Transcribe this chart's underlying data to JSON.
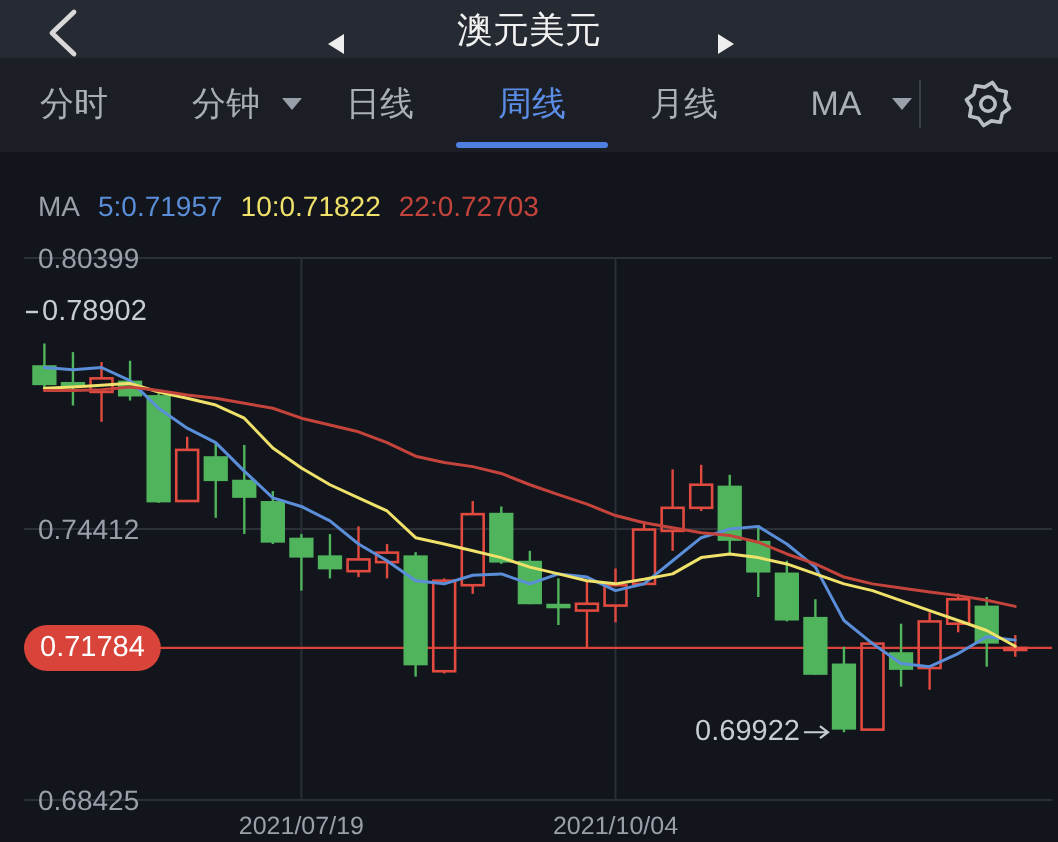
{
  "chart_data": {
    "type": "candlestick",
    "title": "澳元美元",
    "x": [
      "2021-05-17",
      "2021-05-24",
      "2021-05-31",
      "2021-06-07",
      "2021-06-14",
      "2021-06-21",
      "2021-06-28",
      "2021-07-05",
      "2021-07-12",
      "2021-07-19",
      "2021-07-26",
      "2021-08-02",
      "2021-08-09",
      "2021-08-16",
      "2021-08-23",
      "2021-08-30",
      "2021-09-06",
      "2021-09-13",
      "2021-09-20",
      "2021-09-27",
      "2021-10-04",
      "2021-10-11",
      "2021-10-18",
      "2021-10-25",
      "2021-11-01",
      "2021-11-08",
      "2021-11-15",
      "2021-11-22",
      "2021-11-29",
      "2021-12-06",
      "2021-12-13",
      "2021-12-20",
      "2021-12-27",
      "2022-01-03",
      "2022-01-10"
    ],
    "ohlc": [
      [
        0.7803,
        0.7851,
        0.7752,
        0.7759
      ],
      [
        0.7766,
        0.7832,
        0.7714,
        0.7755
      ],
      [
        0.7744,
        0.781,
        0.7678,
        0.7774
      ],
      [
        0.7769,
        0.7813,
        0.7725,
        0.7734
      ],
      [
        0.7737,
        0.774,
        0.7499,
        0.75
      ],
      [
        0.7503,
        0.7645,
        0.7502,
        0.7616
      ],
      [
        0.7602,
        0.7632,
        0.7466,
        0.7547
      ],
      [
        0.755,
        0.7627,
        0.743,
        0.751
      ],
      [
        0.7503,
        0.7525,
        0.7408,
        0.7411
      ],
      [
        0.7422,
        0.743,
        0.7305,
        0.7378
      ],
      [
        0.7383,
        0.743,
        0.7332,
        0.7352
      ],
      [
        0.7348,
        0.7447,
        0.7335,
        0.7374
      ],
      [
        0.7368,
        0.7408,
        0.7332,
        0.7389
      ],
      [
        0.7383,
        0.739,
        0.7115,
        0.714
      ],
      [
        0.7127,
        0.7332,
        0.7122,
        0.7327
      ],
      [
        0.7317,
        0.7503,
        0.7298,
        0.7474
      ],
      [
        0.7477,
        0.7491,
        0.7364,
        0.7367
      ],
      [
        0.7371,
        0.7393,
        0.7275,
        0.7275
      ],
      [
        0.7276,
        0.7332,
        0.7229,
        0.7266
      ],
      [
        0.7261,
        0.7327,
        0.7178,
        0.7276
      ],
      [
        0.7272,
        0.7354,
        0.7235,
        0.7317
      ],
      [
        0.732,
        0.7459,
        0.7317,
        0.744
      ],
      [
        0.7437,
        0.7573,
        0.7393,
        0.7488
      ],
      [
        0.7488,
        0.7583,
        0.7481,
        0.7539
      ],
      [
        0.7537,
        0.7561,
        0.7386,
        0.7415
      ],
      [
        0.7415,
        0.7444,
        0.7291,
        0.7345
      ],
      [
        0.7345,
        0.7371,
        0.7237,
        0.7239
      ],
      [
        0.7247,
        0.7286,
        0.7119,
        0.7119
      ],
      [
        0.7144,
        0.7181,
        0.69922,
        0.6998
      ],
      [
        0.6998,
        0.7193,
        0.6996,
        0.7188
      ],
      [
        0.7169,
        0.7232,
        0.7093,
        0.713
      ],
      [
        0.7134,
        0.7257,
        0.7086,
        0.7237
      ],
      [
        0.7232,
        0.7298,
        0.7213,
        0.7286
      ],
      [
        0.7272,
        0.7291,
        0.7137,
        0.7188
      ],
      [
        0.7175,
        0.7207,
        0.7159,
        0.71784
      ]
    ],
    "colors": [
      "#4fb45c",
      "#4fb45c",
      "#e04a3f",
      "#4fb45c",
      "#4fb45c",
      "#e04a3f",
      "#4fb45c",
      "#4fb45c",
      "#4fb45c",
      "#4fb45c",
      "#4fb45c",
      "#e04a3f",
      "#e04a3f",
      "#4fb45c",
      "#e04a3f",
      "#e04a3f",
      "#4fb45c",
      "#4fb45c",
      "#4fb45c",
      "#e04a3f",
      "#e04a3f",
      "#e04a3f",
      "#e04a3f",
      "#e04a3f",
      "#4fb45c",
      "#4fb45c",
      "#4fb45c",
      "#4fb45c",
      "#4fb45c",
      "#e04a3f",
      "#4fb45c",
      "#e04a3f",
      "#e04a3f",
      "#4fb45c",
      "#e04a3f"
    ],
    "series": [
      {
        "name": "5:0.71957",
        "type": "line",
        "color": "#5b8ed8",
        "values": [
          0.7798,
          0.7793,
          0.7798,
          0.7769,
          0.7708,
          0.7664,
          0.7632,
          0.7569,
          0.751,
          0.7491,
          0.7459,
          0.7408,
          0.7371,
          0.7327,
          0.732,
          0.7339,
          0.7342,
          0.732,
          0.7342,
          0.7335,
          0.7305,
          0.732,
          0.7371,
          0.7422,
          0.7441,
          0.7447,
          0.7408,
          0.7357,
          0.7239,
          0.7188,
          0.7144,
          0.7137,
          0.7166,
          0.7203,
          0.71957
        ]
      },
      {
        "name": "10:0.71822",
        "type": "line",
        "color": "#efe16a",
        "values": [
          0.7752,
          0.7755,
          0.7759,
          0.7763,
          0.7744,
          0.773,
          0.7715,
          0.7686,
          0.762,
          0.7576,
          0.7539,
          0.751,
          0.7481,
          0.7422,
          0.7408,
          0.7393,
          0.7378,
          0.7357,
          0.7342,
          0.7327,
          0.732,
          0.733,
          0.7342,
          0.7378,
          0.7386,
          0.7378,
          0.7364,
          0.7342,
          0.732,
          0.7305,
          0.7283,
          0.7261,
          0.7239,
          0.7217,
          0.71822
        ]
      },
      {
        "name": "22:0.72703",
        "type": "line",
        "color": "#c4443c",
        "values": [
          0.7747,
          0.7747,
          0.7749,
          0.7755,
          0.7747,
          0.7737,
          0.773,
          0.7719,
          0.7708,
          0.7686,
          0.7671,
          0.7656,
          0.7632,
          0.7602,
          0.7588,
          0.7579,
          0.7564,
          0.7539,
          0.7517,
          0.7496,
          0.7471,
          0.7455,
          0.7444,
          0.7433,
          0.7427,
          0.7412,
          0.7386,
          0.7364,
          0.7335,
          0.732,
          0.7311,
          0.7302,
          0.7294,
          0.7284,
          0.72703
        ]
      }
    ],
    "legend_title": "MA",
    "legend": "top left",
    "xlim": [
      "2021-05-12",
      "2022-01-19"
    ],
    "xticks": [
      {
        "value": "2021-07-19",
        "label": "2021/07/19"
      },
      {
        "value": "2021-10-04",
        "label": "2021/10/04"
      }
    ],
    "ylim": [
      0.68425,
      0.80399
    ],
    "yticks": [
      0.68425,
      0.74412,
      0.80399
    ],
    "grid": true,
    "ref_lines": [
      {
        "axis": "y",
        "value": 0.71784,
        "label": "0.71784",
        "color": "#d9443a"
      }
    ],
    "annotations": [
      "分时",
      "分钟",
      "日线",
      "周线",
      "月线",
      "MA",
      "0.78902",
      {
        "text": "0.69922",
        "x": "2021-11-29",
        "y": 0.69922
      }
    ]
  }
}
